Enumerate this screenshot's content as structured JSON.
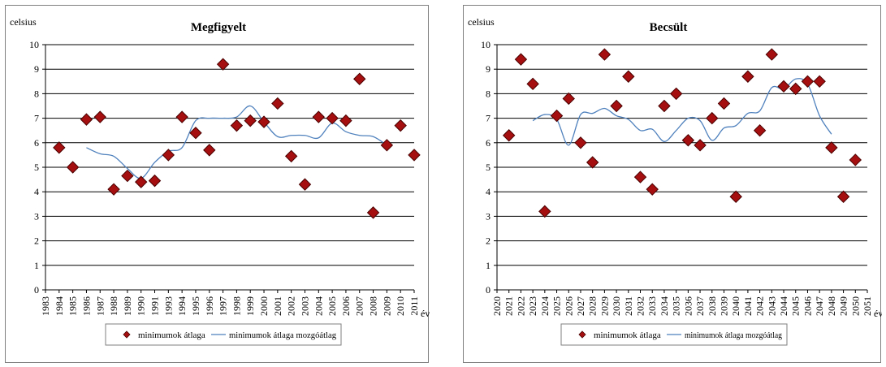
{
  "colors": {
    "marker": "#a50f0f",
    "marker_edge": "#4a0000",
    "line": "#4f81bd",
    "grid": "#000000"
  },
  "chart_data": [
    {
      "type": "scatter",
      "title": "Megfigyelt",
      "ylabel": "celsius",
      "xlabel": "év",
      "ylim": [
        0,
        10
      ],
      "yticks": [
        "0",
        "1",
        "2",
        "3",
        "4",
        "5",
        "6",
        "7",
        "8",
        "9",
        "10"
      ],
      "categories": [
        "1983",
        "1984",
        "1985",
        "1986",
        "1987",
        "1988",
        "1989",
        "1990",
        "1991",
        "1993",
        "1994",
        "1995",
        "1996",
        "1997",
        "1998",
        "1999",
        "2000",
        "2001",
        "2002",
        "2003",
        "2004",
        "2005",
        "2006",
        "2007",
        "2008",
        "2009",
        "2010",
        "2011"
      ],
      "grid": true,
      "legend_position": "bottom",
      "series": [
        {
          "name": "minimumok átlaga",
          "kind": "markers",
          "values": [
            null,
            5.8,
            5.0,
            6.95,
            7.05,
            4.1,
            4.65,
            4.4,
            4.45,
            5.5,
            7.05,
            6.4,
            5.7,
            9.2,
            6.7,
            6.9,
            6.85,
            7.6,
            5.45,
            4.3,
            7.05,
            7.0,
            6.9,
            8.6,
            3.15,
            5.9,
            6.7,
            5.5
          ]
        },
        {
          "name": "minimumok átlaga mozgóátlag",
          "kind": "line",
          "values": [
            null,
            null,
            null,
            5.8,
            5.55,
            5.45,
            4.95,
            4.55,
            5.2,
            5.65,
            5.8,
            6.9,
            7.0,
            7.0,
            7.05,
            7.5,
            6.85,
            6.25,
            6.3,
            6.3,
            6.2,
            6.8,
            6.45,
            6.3,
            6.25,
            5.9,
            null,
            null
          ]
        }
      ]
    },
    {
      "type": "scatter",
      "title": "Becsült",
      "ylabel": "celsius",
      "xlabel": "év",
      "ylim": [
        0,
        10
      ],
      "yticks": [
        "0",
        "1",
        "2",
        "3",
        "4",
        "5",
        "6",
        "7",
        "8",
        "9",
        "10"
      ],
      "categories": [
        "2020",
        "2021",
        "2022",
        "2023",
        "2024",
        "2025",
        "2026",
        "2027",
        "2028",
        "2029",
        "2030",
        "2031",
        "2032",
        "2033",
        "2034",
        "2035",
        "2036",
        "2037",
        "2038",
        "2039",
        "2040",
        "2041",
        "2042",
        "2043",
        "2044",
        "2045",
        "2046",
        "2047",
        "2048",
        "2049",
        "2050",
        "2051"
      ],
      "grid": true,
      "legend_position": "bottom",
      "series": [
        {
          "name": "minimumok átlaga",
          "kind": "markers",
          "values": [
            null,
            6.3,
            9.4,
            8.4,
            3.2,
            7.1,
            7.8,
            6.0,
            5.2,
            9.6,
            7.5,
            8.7,
            4.6,
            4.1,
            7.5,
            8.0,
            6.1,
            5.9,
            7.0,
            7.6,
            3.8,
            8.7,
            6.5,
            9.6,
            8.3,
            8.2,
            8.5,
            8.5,
            5.8,
            3.8,
            5.3,
            null
          ]
        },
        {
          "name": "minimumok átlaga mozgóátlag",
          "kind": "line",
          "values": [
            null,
            null,
            null,
            6.9,
            7.15,
            6.95,
            5.9,
            7.15,
            7.2,
            7.4,
            7.1,
            6.95,
            6.5,
            6.55,
            6.05,
            6.5,
            7.0,
            6.9,
            6.1,
            6.6,
            6.7,
            7.2,
            7.3,
            8.25,
            8.2,
            8.6,
            8.4,
            7.1,
            6.35,
            null,
            null,
            null
          ]
        }
      ]
    }
  ]
}
